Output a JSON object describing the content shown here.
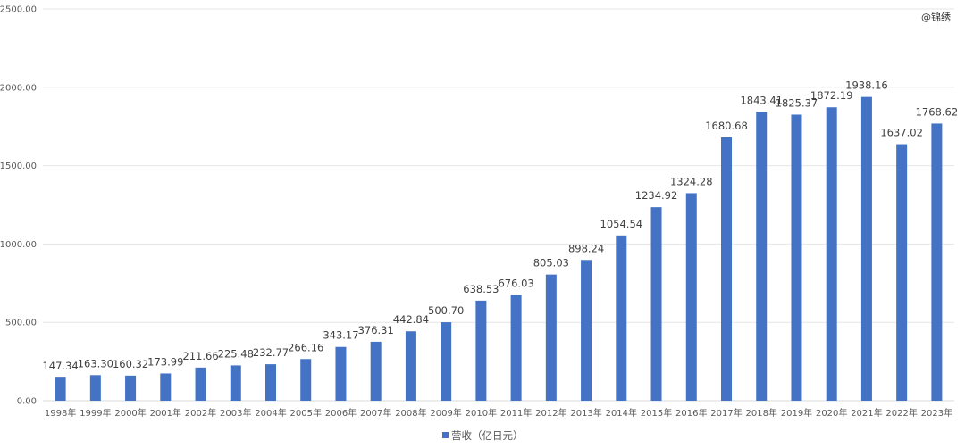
{
  "watermark": "@锦绣",
  "chart_data": {
    "type": "bar",
    "title": "",
    "xlabel": "",
    "ylabel": "",
    "ylim": [
      0,
      2500
    ],
    "yticks": [
      "0.00",
      "500.00",
      "1000.00",
      "1500.00",
      "2000.00",
      "2500.00"
    ],
    "grid": true,
    "legend_position": "bottom",
    "categories": [
      "1998年",
      "1999年",
      "2000年",
      "2001年",
      "2002年",
      "2003年",
      "2004年",
      "2005年",
      "2006年",
      "2007年",
      "2008年",
      "2009年",
      "2010年",
      "2011年",
      "2012年",
      "2013年",
      "2014年",
      "2015年",
      "2016年",
      "2017年",
      "2018年",
      "2019年",
      "2020年",
      "2021年",
      "2022年",
      "2023年"
    ],
    "series": [
      {
        "name": "营收（亿日元）",
        "color": "#4472C4",
        "values": [
          147.34,
          163.3,
          160.32,
          173.99,
          211.66,
          225.48,
          232.77,
          266.16,
          343.17,
          376.31,
          442.84,
          500.7,
          638.53,
          676.03,
          805.03,
          898.24,
          1054.54,
          1234.92,
          1324.28,
          1680.68,
          1843.41,
          1825.37,
          1872.19,
          1938.16,
          1637.02,
          1768.62
        ],
        "labels": [
          "147.34",
          "163.30",
          "160.32",
          "173.99",
          "211.66",
          "225.48",
          "232.77",
          "266.16",
          "343.17",
          "376.31",
          "442.84",
          "500.70",
          "638.53",
          "676.03",
          "805.03",
          "898.24",
          "1054.54",
          "1234.92",
          "1324.28",
          "1680.68",
          "1843.41",
          "1825.37",
          "1872.19",
          "1938.16",
          "1637.02",
          "1768.62"
        ]
      }
    ]
  }
}
